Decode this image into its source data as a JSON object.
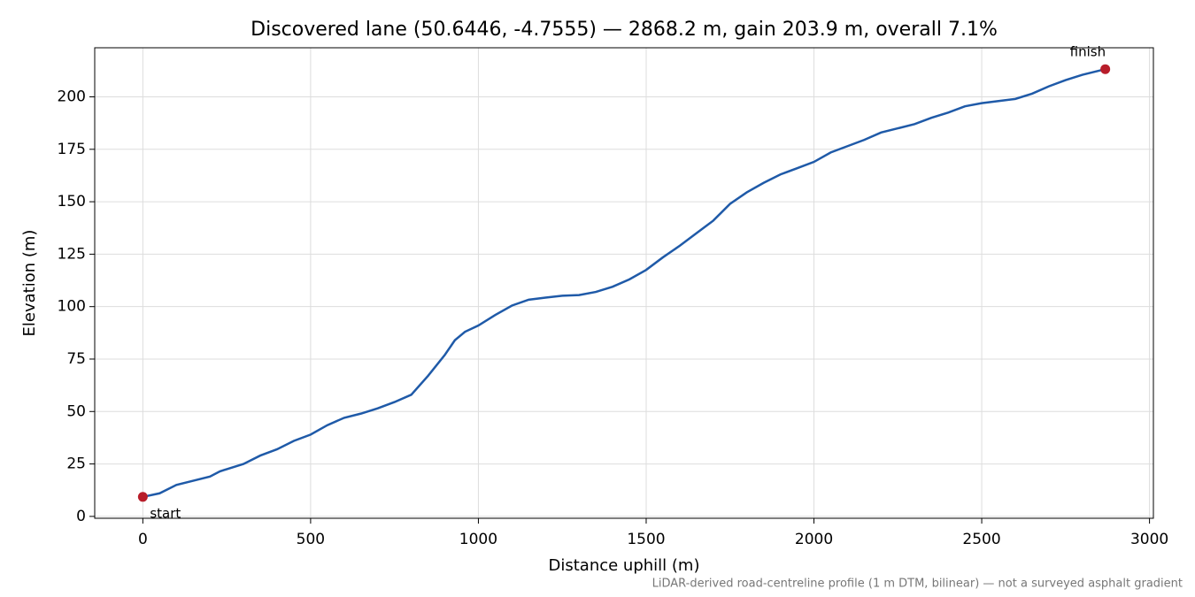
{
  "chart_data": {
    "type": "line",
    "title": "Discovered lane (50.6446, -4.7555) — 2868.2 m, gain 203.9 m, overall 7.1%",
    "x_label": "Distance uphill (m)",
    "y_label": "Elevation (m)",
    "footnote": "LiDAR-derived road-centreline profile (1 m DTM, bilinear) — not a surveyed asphalt gradient",
    "annotations": [
      "start",
      "finish"
    ],
    "x": [
      0,
      50,
      100,
      150,
      200,
      230,
      300,
      350,
      400,
      450,
      500,
      550,
      600,
      650,
      700,
      750,
      800,
      850,
      900,
      930,
      960,
      1000,
      1050,
      1100,
      1150,
      1200,
      1250,
      1300,
      1350,
      1400,
      1450,
      1500,
      1550,
      1600,
      1650,
      1700,
      1750,
      1800,
      1850,
      1900,
      1950,
      2000,
      2050,
      2100,
      2150,
      2200,
      2250,
      2300,
      2350,
      2400,
      2450,
      2500,
      2550,
      2600,
      2650,
      2700,
      2750,
      2800,
      2868.2
    ],
    "series": [
      {
        "name": "Elevation",
        "color": "#1f5aa8",
        "marker_color": "#b81d2a",
        "values": [
          9.3,
          11,
          15,
          17,
          19,
          21.5,
          25,
          29,
          32,
          36,
          39,
          43.5,
          47,
          49,
          51.5,
          54.5,
          58,
          67,
          77,
          84,
          88,
          91,
          96,
          100.5,
          103.3,
          104.3,
          105.2,
          105.5,
          107,
          109.5,
          113,
          117.5,
          123.5,
          129,
          135,
          141,
          149,
          154.5,
          159,
          163,
          166,
          169,
          173.5,
          176.5,
          179.5,
          183,
          185,
          187,
          190,
          192.5,
          195.5,
          197,
          198,
          199,
          201.5,
          205,
          208,
          210.5,
          213.2
        ]
      }
    ],
    "xlim": [
      -143.4,
      3011.6
    ],
    "ylim": [
      -0.9,
      223.4
    ],
    "xticks": [
      0,
      500,
      1000,
      1500,
      2000,
      2500,
      3000
    ],
    "yticks": [
      0,
      25,
      50,
      75,
      100,
      125,
      150,
      175,
      200
    ],
    "grid": true
  }
}
